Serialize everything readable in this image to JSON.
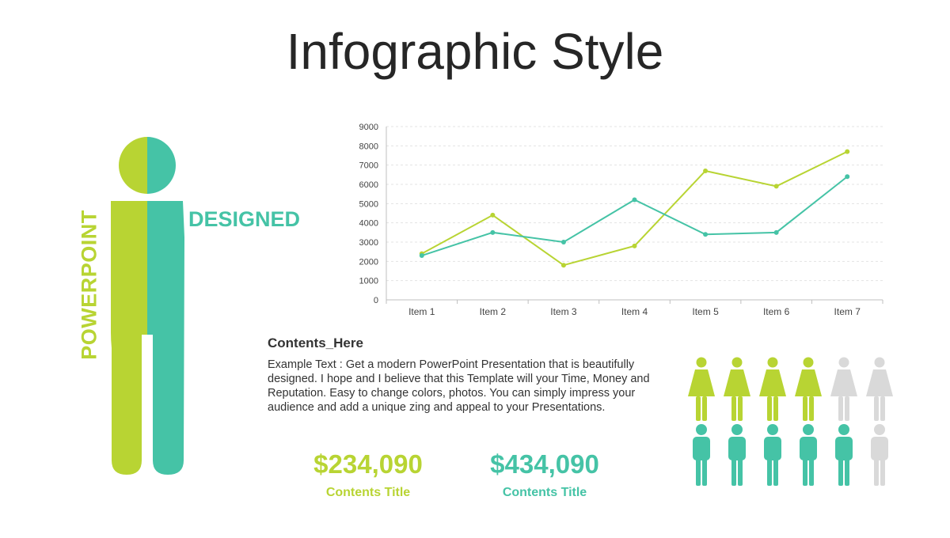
{
  "title": "Infographic Style",
  "colors": {
    "green": "#b8d433",
    "teal": "#45c3a6",
    "gray": "#d9d9d9",
    "text": "#333333"
  },
  "figure": {
    "left_label": "POWERPOINT",
    "right_label": "DESIGNED"
  },
  "chart_data": {
    "type": "line",
    "categories": [
      "Item 1",
      "Item 2",
      "Item 3",
      "Item 4",
      "Item 5",
      "Item 6",
      "Item 7"
    ],
    "series": [
      {
        "values": [
          2400,
          4400,
          1800,
          2800,
          6700,
          5900,
          7700
        ],
        "color": "#b8d433"
      },
      {
        "values": [
          2300,
          3500,
          3000,
          5200,
          3400,
          3500,
          6400
        ],
        "color": "#45c3a6"
      }
    ],
    "yticks": [
      0,
      1000,
      2000,
      3000,
      4000,
      5000,
      6000,
      7000,
      8000,
      9000
    ],
    "ylim": [
      0,
      9000
    ],
    "grid": true
  },
  "contents": {
    "heading": "Contents_Here",
    "body": "Example Text : Get a modern PowerPoint  Presentation that is beautifully designed. I hope and I believe that this Template will your Time, Money and Reputation. Easy to change colors, photos. You can simply impress your audience and add a unique zing and appeal to your Presentations."
  },
  "stats": [
    {
      "value": "$234,090",
      "label": "Contents Title",
      "color": "#b8d433"
    },
    {
      "value": "$434,090",
      "label": "Contents Title",
      "color": "#45c3a6"
    }
  ],
  "pictogram": {
    "female_row": {
      "filled": 4,
      "total": 6,
      "icon": "female-person-icon"
    },
    "male_row": {
      "filled": 5,
      "total": 6,
      "icon": "male-person-icon"
    }
  }
}
